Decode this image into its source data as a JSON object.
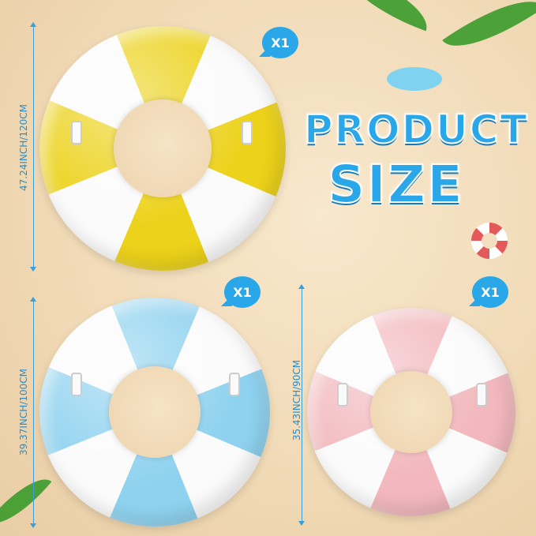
{
  "title": {
    "line1": "PRODUCT",
    "line2": "SIZE"
  },
  "rings": [
    {
      "color": "yellow",
      "hex": "#ecd21a",
      "quantity": "X1",
      "dimension": "47.24INCH/120CM"
    },
    {
      "color": "blue",
      "hex": "#8fd2ef",
      "quantity": "X1",
      "dimension": "39.37INCH/100CM"
    },
    {
      "color": "pink",
      "hex": "#f2b8bd",
      "quantity": "X1",
      "dimension": "35.43INCH/90CM"
    }
  ],
  "accent": "#2aa7e8"
}
